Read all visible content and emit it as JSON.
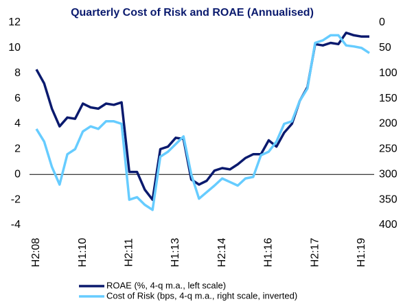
{
  "chart_data": {
    "type": "line",
    "title": "Quarterly Cost of Risk and ROAE (Annualised)",
    "categories": [
      "H2:08",
      null,
      null,
      null,
      null,
      null,
      "H1:10",
      null,
      null,
      null,
      null,
      null,
      "H2:11",
      null,
      null,
      null,
      null,
      null,
      "H1:13",
      null,
      null,
      null,
      null,
      null,
      "H2:14",
      null,
      null,
      null,
      null,
      null,
      "H1:16",
      null,
      null,
      null,
      null,
      null,
      "H2:17",
      null,
      null,
      null,
      null,
      null,
      "H1:19",
      null
    ],
    "series": [
      {
        "name": "ROAE (%, 4-q m.a., left scale)",
        "color": "#0a1a6e",
        "values": [
          8.3,
          7.2,
          5.2,
          3.8,
          4.5,
          4.4,
          5.6,
          5.3,
          5.2,
          5.6,
          5.5,
          5.7,
          0.2,
          0.2,
          -1.2,
          -2.0,
          2.0,
          2.2,
          2.9,
          2.8,
          -0.4,
          -0.8,
          -0.5,
          0.3,
          0.5,
          0.4,
          0.8,
          1.3,
          1.6,
          1.6,
          2.7,
          2.2,
          3.3,
          4.0,
          5.8,
          6.9,
          10.3,
          10.2,
          10.4,
          10.3,
          11.2,
          11.0,
          10.9,
          10.9
        ]
      },
      {
        "name": "Cost of Risk (bps, 4-q m.a., right scale, inverted)",
        "color": "#66ccff",
        "axis": "y2",
        "values": [
          210,
          235,
          285,
          320,
          260,
          250,
          215,
          205,
          210,
          195,
          195,
          200,
          350,
          345,
          360,
          370,
          265,
          255,
          240,
          225,
          300,
          348,
          335,
          322,
          308,
          315,
          322,
          308,
          305,
          262,
          255,
          235,
          200,
          195,
          155,
          130,
          40,
          35,
          25,
          25,
          45,
          47,
          50,
          60
        ]
      }
    ],
    "ylim": [
      -4,
      12
    ],
    "yticks": [
      -4,
      -2,
      0,
      2,
      4,
      6,
      8,
      10,
      12
    ],
    "y2lim": [
      0,
      400
    ],
    "y2ticks": [
      0,
      50,
      100,
      150,
      200,
      250,
      300,
      350,
      400
    ],
    "y2_inverted": true,
    "legend": "bottom"
  }
}
